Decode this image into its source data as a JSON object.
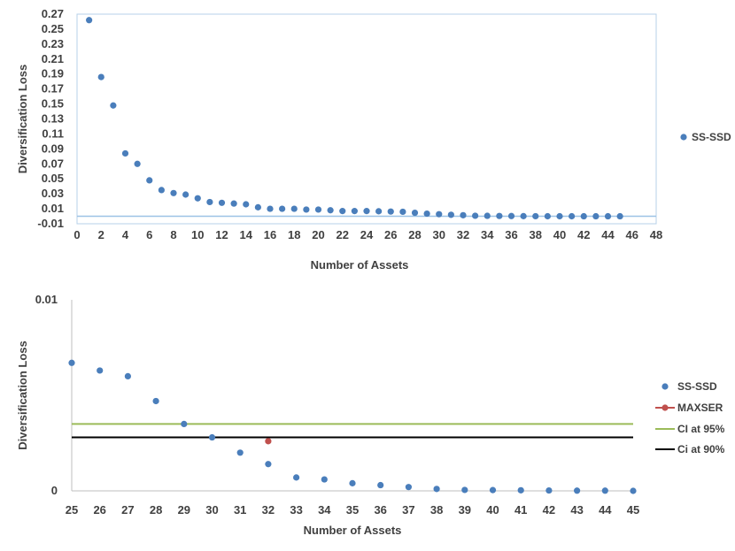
{
  "colors": {
    "series": "#4a7ebb",
    "maxser": "#c0504d",
    "ci95": "#9bbb59",
    "ci90": "#000000",
    "zero_line": "#9dc3e6",
    "frame": "#b7d0e8",
    "axis": "#bfbfbf",
    "text": "#404040"
  },
  "chart_data": [
    {
      "type": "scatter",
      "xlabel": "Number of Assets",
      "ylabel": "Diversification Loss",
      "xlim": [
        0,
        48
      ],
      "ylim": [
        -0.01,
        0.27
      ],
      "xticks": [
        "0",
        "2",
        "4",
        "6",
        "8",
        "10",
        "12",
        "14",
        "16",
        "18",
        "20",
        "22",
        "24",
        "26",
        "28",
        "30",
        "32",
        "34",
        "36",
        "38",
        "40",
        "42",
        "44",
        "46",
        "48"
      ],
      "yticks": [
        "-0.01",
        "0.01",
        "0.03",
        "0.05",
        "0.07",
        "0.09",
        "0.11",
        "0.13",
        "0.15",
        "0.17",
        "0.19",
        "0.21",
        "0.23",
        "0.25",
        "0.27"
      ],
      "legend_position": "right",
      "series": [
        {
          "name": "SS-SSD",
          "x": [
            1,
            2,
            3,
            4,
            5,
            6,
            7,
            8,
            9,
            10,
            11,
            12,
            13,
            14,
            15,
            16,
            17,
            18,
            19,
            20,
            21,
            22,
            23,
            24,
            25,
            26,
            27,
            28,
            29,
            30,
            31,
            32,
            33,
            34,
            35,
            36,
            37,
            38,
            39,
            40,
            41,
            42,
            43,
            44,
            45
          ],
          "y": [
            0.262,
            0.186,
            0.148,
            0.084,
            0.07,
            0.048,
            0.035,
            0.031,
            0.029,
            0.024,
            0.019,
            0.018,
            0.017,
            0.016,
            0.012,
            0.01,
            0.01,
            0.01,
            0.009,
            0.009,
            0.008,
            0.007,
            0.007,
            0.007,
            0.0067,
            0.0063,
            0.006,
            0.0047,
            0.0035,
            0.0028,
            0.002,
            0.0014,
            0.0007,
            0.0006,
            0.0004,
            0.0003,
            0.0002,
            0.0001,
            5e-05,
            4e-05,
            3e-05,
            2e-05,
            1e-05,
            1e-05,
            0
          ]
        }
      ]
    },
    {
      "type": "scatter",
      "xlabel": "Number of Assets",
      "ylabel": "Diversification Loss",
      "xlim": [
        25,
        45
      ],
      "ylim": [
        0,
        0.01
      ],
      "xticks": [
        "25",
        "26",
        "27",
        "28",
        "29",
        "30",
        "31",
        "32",
        "33",
        "34",
        "35",
        "36",
        "37",
        "38",
        "39",
        "40",
        "41",
        "42",
        "43",
        "44",
        "45"
      ],
      "yticks": [
        "0",
        "0.01"
      ],
      "legend_position": "right",
      "series": [
        {
          "name": "SS-SSD",
          "x": [
            25,
            26,
            27,
            28,
            29,
            30,
            31,
            32,
            33,
            34,
            35,
            36,
            37,
            38,
            39,
            40,
            41,
            42,
            43,
            44,
            45
          ],
          "y": [
            0.0067,
            0.0063,
            0.006,
            0.0047,
            0.0035,
            0.0028,
            0.002,
            0.0014,
            0.0007,
            0.0006,
            0.0004,
            0.0003,
            0.0002,
            0.0001,
            5e-05,
            4e-05,
            3e-05,
            2e-05,
            1e-05,
            1e-05,
            0
          ]
        },
        {
          "name": "MAXSER",
          "x": [
            32
          ],
          "y": [
            0.0026
          ]
        }
      ],
      "hlines": [
        {
          "name": "CI at 95%",
          "y": 0.0035
        },
        {
          "name": "Ci at 90%",
          "y": 0.0028
        }
      ]
    }
  ]
}
